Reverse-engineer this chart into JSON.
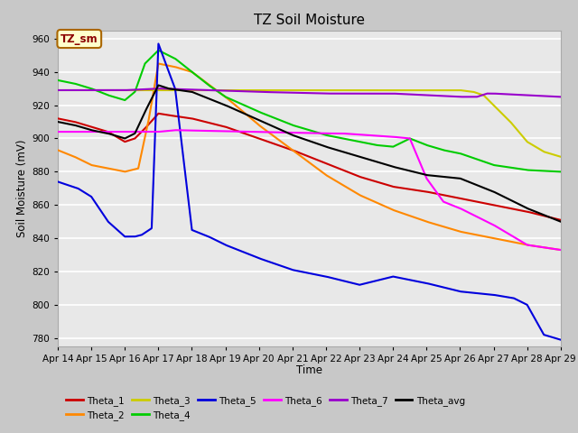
{
  "title": "TZ Soil Moisture",
  "xlabel": "Time",
  "ylabel": "Soil Moisture (mV)",
  "ylim": [
    775,
    965
  ],
  "yticks": [
    780,
    800,
    820,
    840,
    860,
    880,
    900,
    920,
    940,
    960
  ],
  "xstart": 14.0,
  "xend": 29.0,
  "xtick_labels": [
    "Apr 14",
    "Apr 15",
    "Apr 16",
    "Apr 17",
    "Apr 18",
    "Apr 19",
    "Apr 20",
    "Apr 21",
    "Apr 22",
    "Apr 23",
    "Apr 24",
    "Apr 25",
    "Apr 26",
    "Apr 27",
    "Apr 28",
    "Apr 29"
  ],
  "xtick_positions": [
    14,
    15,
    16,
    17,
    18,
    19,
    20,
    21,
    22,
    23,
    24,
    25,
    26,
    27,
    28,
    29
  ],
  "colors": {
    "Theta_1": "#cc0000",
    "Theta_2": "#ff8800",
    "Theta_3": "#cccc00",
    "Theta_4": "#00cc00",
    "Theta_5": "#0000dd",
    "Theta_6": "#ff00ff",
    "Theta_7": "#9900cc",
    "Theta_avg": "#000000"
  },
  "legend_label": "TZ_sm",
  "bg_color": "#e8e8e8"
}
